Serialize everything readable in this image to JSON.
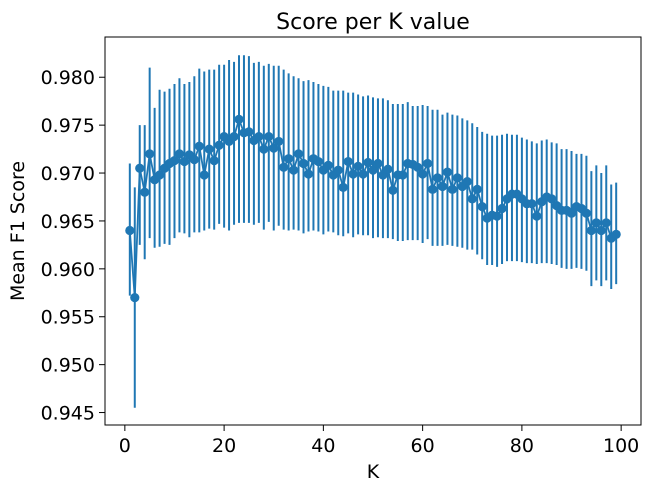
{
  "chart_data": {
    "type": "line",
    "title": "Score per K value",
    "xlabel": "K",
    "ylabel": "Mean F1 Score",
    "xlim": [
      -4,
      104
    ],
    "ylim": [
      0.9437,
      0.9842
    ],
    "xticks": [
      0,
      20,
      40,
      60,
      80,
      100
    ],
    "xtick_labels": [
      "0",
      "20",
      "40",
      "60",
      "80",
      "100"
    ],
    "yticks": [
      0.945,
      0.95,
      0.955,
      0.96,
      0.965,
      0.97,
      0.975,
      0.98
    ],
    "ytick_labels": [
      "0.945",
      "0.950",
      "0.955",
      "0.960",
      "0.965",
      "0.970",
      "0.975",
      "0.980"
    ],
    "grid": false,
    "legend": "none",
    "error_bars": true,
    "markers": "circle",
    "color": "#1f77b4",
    "x": [
      1,
      2,
      3,
      4,
      5,
      6,
      7,
      8,
      9,
      10,
      11,
      12,
      13,
      14,
      15,
      16,
      17,
      18,
      19,
      20,
      21,
      22,
      23,
      24,
      25,
      26,
      27,
      28,
      29,
      30,
      31,
      32,
      33,
      34,
      35,
      36,
      37,
      38,
      39,
      40,
      41,
      42,
      43,
      44,
      45,
      46,
      47,
      48,
      49,
      50,
      51,
      52,
      53,
      54,
      55,
      56,
      57,
      58,
      59,
      60,
      61,
      62,
      63,
      64,
      65,
      66,
      67,
      68,
      69,
      70,
      71,
      72,
      73,
      74,
      75,
      76,
      77,
      78,
      79,
      80,
      81,
      82,
      83,
      84,
      85,
      86,
      87,
      88,
      89,
      90,
      91,
      92,
      93,
      94,
      95,
      96,
      97,
      98,
      99
    ],
    "y": [
      0.964,
      0.957,
      0.9705,
      0.968,
      0.972,
      0.9693,
      0.9698,
      0.9705,
      0.971,
      0.9713,
      0.972,
      0.9712,
      0.9719,
      0.9714,
      0.9728,
      0.9698,
      0.9725,
      0.9713,
      0.9729,
      0.9738,
      0.9733,
      0.9738,
      0.9756,
      0.9742,
      0.9743,
      0.9734,
      0.9738,
      0.9725,
      0.9738,
      0.9726,
      0.9733,
      0.9706,
      0.9715,
      0.9703,
      0.972,
      0.971,
      0.9699,
      0.9715,
      0.9712,
      0.9703,
      0.9708,
      0.9698,
      0.9703,
      0.9685,
      0.9712,
      0.9699,
      0.9707,
      0.9699,
      0.9711,
      0.9703,
      0.971,
      0.9698,
      0.9704,
      0.9682,
      0.9698,
      0.9698,
      0.971,
      0.9709,
      0.9706,
      0.9699,
      0.971,
      0.9683,
      0.9695,
      0.9686,
      0.9701,
      0.9683,
      0.9695,
      0.9686,
      0.9691,
      0.9673,
      0.9683,
      0.9665,
      0.9653,
      0.9656,
      0.9655,
      0.9663,
      0.9673,
      0.9678,
      0.9678,
      0.9673,
      0.9668,
      0.9668,
      0.9655,
      0.967,
      0.9675,
      0.9673,
      0.9666,
      0.9661,
      0.9661,
      0.9658,
      0.9665,
      0.9663,
      0.9658,
      0.964,
      0.9648,
      0.964,
      0.9648,
      0.9632,
      0.9636
    ],
    "err_low": [
      0.9572,
      0.9455,
      0.9625,
      0.961,
      0.9632,
      0.9622,
      0.9623,
      0.9626,
      0.9625,
      0.9632,
      0.9638,
      0.9637,
      0.9633,
      0.9638,
      0.9638,
      0.964,
      0.9642,
      0.9641,
      0.9647,
      0.9643,
      0.964,
      0.9646,
      0.9648,
      0.9648,
      0.9648,
      0.9646,
      0.9648,
      0.9641,
      0.9649,
      0.964,
      0.9645,
      0.9641,
      0.964,
      0.9641,
      0.964,
      0.9637,
      0.9639,
      0.964,
      0.9639,
      0.9636,
      0.9639,
      0.9638,
      0.9635,
      0.9634,
      0.9637,
      0.9633,
      0.9636,
      0.9635,
      0.9635,
      0.9632,
      0.9633,
      0.9632,
      0.9632,
      0.9631,
      0.9629,
      0.9629,
      0.963,
      0.963,
      0.963,
      0.9627,
      0.9631,
      0.9624,
      0.9624,
      0.9624,
      0.9625,
      0.9624,
      0.9623,
      0.9622,
      0.962,
      0.962,
      0.9615,
      0.961,
      0.9604,
      0.9604,
      0.9602,
      0.9605,
      0.9608,
      0.9608,
      0.9608,
      0.9607,
      0.9606,
      0.9606,
      0.9605,
      0.9606,
      0.9606,
      0.9605,
      0.9604,
      0.9601,
      0.96,
      0.96,
      0.9601,
      0.96,
      0.9598,
      0.9582,
      0.9588,
      0.9582,
      0.9588,
      0.9579,
      0.9584
    ],
    "err_high": [
      0.971,
      0.9685,
      0.975,
      0.975,
      0.981,
      0.9768,
      0.9787,
      0.9785,
      0.9788,
      0.9793,
      0.9799,
      0.9793,
      0.9795,
      0.9801,
      0.9809,
      0.9806,
      0.9808,
      0.9808,
      0.9813,
      0.9813,
      0.9818,
      0.9816,
      0.9823,
      0.9823,
      0.9822,
      0.9815,
      0.9816,
      0.9812,
      0.9814,
      0.9812,
      0.9812,
      0.9808,
      0.9804,
      0.9801,
      0.9799,
      0.9796,
      0.9797,
      0.9795,
      0.9793,
      0.9791,
      0.979,
      0.9786,
      0.9786,
      0.9786,
      0.9784,
      0.9784,
      0.9782,
      0.978,
      0.9781,
      0.9779,
      0.9778,
      0.9778,
      0.9776,
      0.9772,
      0.9772,
      0.9772,
      0.9774,
      0.977,
      0.977,
      0.9771,
      0.977,
      0.9766,
      0.9766,
      0.9761,
      0.9763,
      0.9761,
      0.976,
      0.9757,
      0.9755,
      0.9752,
      0.9748,
      0.9743,
      0.9741,
      0.9739,
      0.9739,
      0.974,
      0.9741,
      0.974,
      0.974,
      0.9737,
      0.9735,
      0.9733,
      0.9731,
      0.9734,
      0.9735,
      0.9732,
      0.9731,
      0.9725,
      0.9725,
      0.9723,
      0.972,
      0.972,
      0.9718,
      0.9702,
      0.9708,
      0.97,
      0.9708,
      0.9688,
      0.969
    ]
  }
}
